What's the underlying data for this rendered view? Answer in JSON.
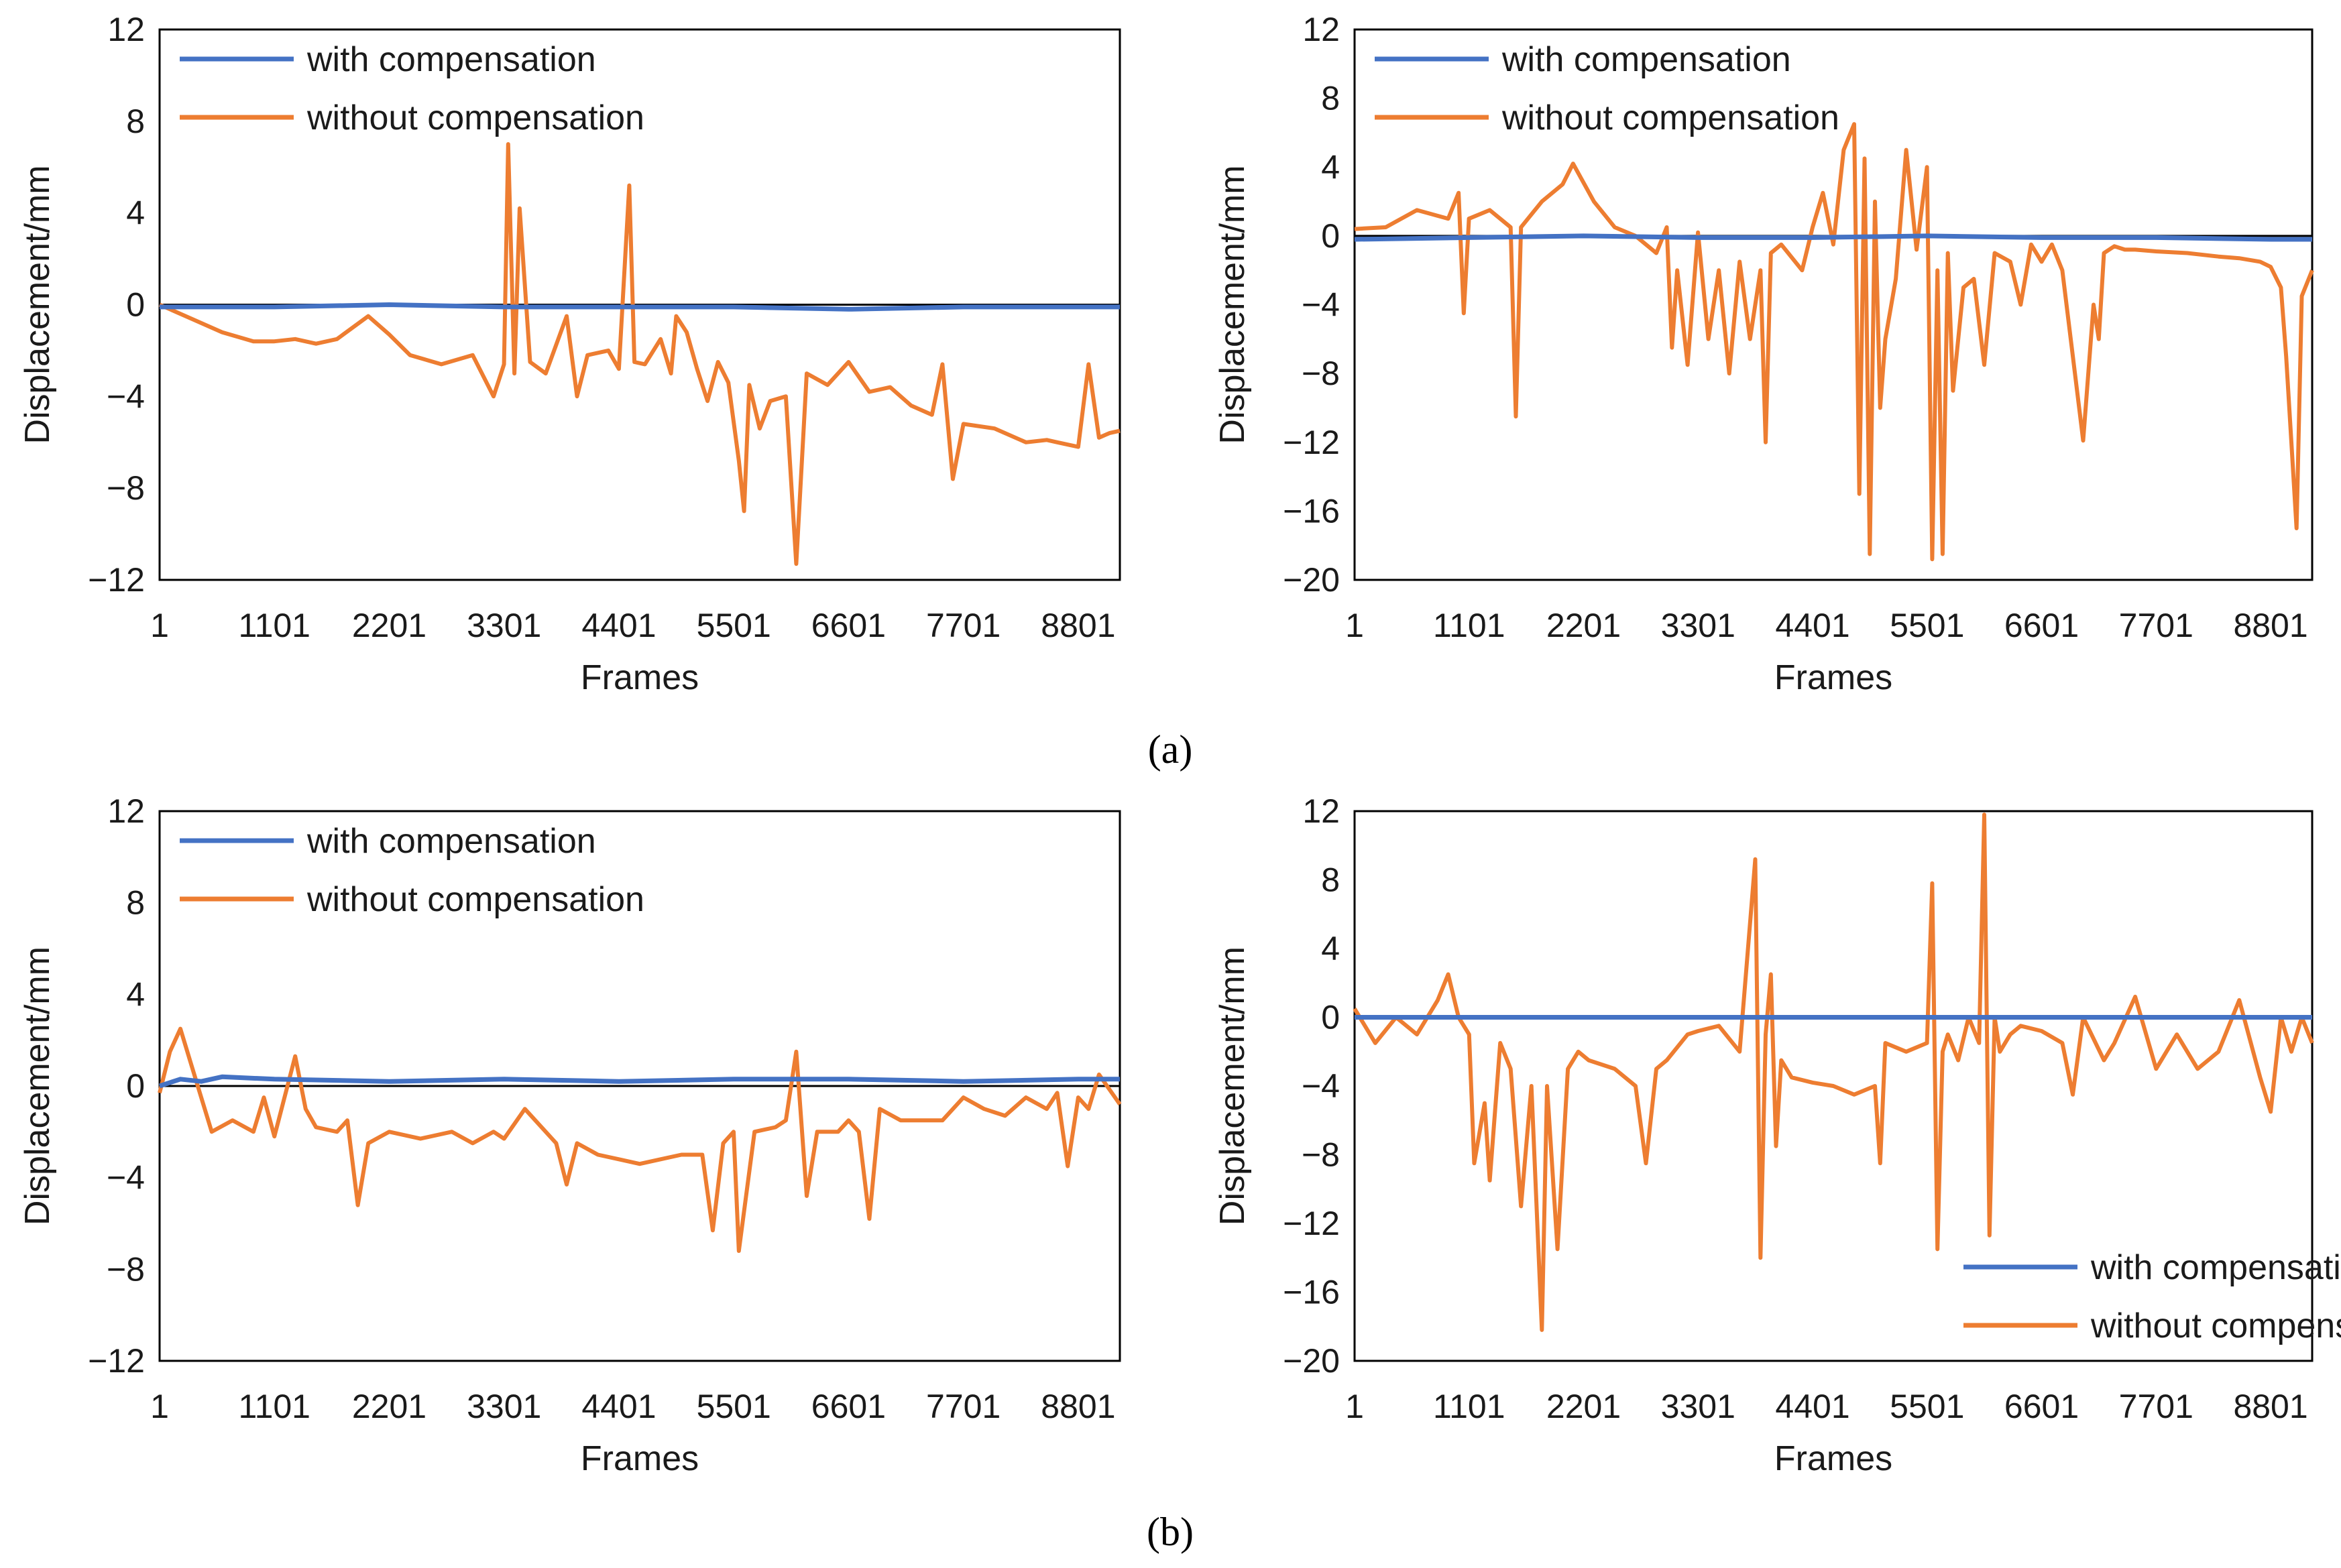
{
  "captions": {
    "a": "(a)",
    "b": "(b)"
  },
  "colors": {
    "with": "#4472C4",
    "without": "#ED7D31",
    "axis": "#000000"
  },
  "chart_data": [
    {
      "id": "a-left",
      "type": "line",
      "xlabel": "Frames",
      "ylabel": "Displacement/mm",
      "xlim": [
        1,
        9200
      ],
      "ylim": [
        -12,
        12
      ],
      "xticks": [
        1,
        1101,
        2201,
        3301,
        4401,
        5501,
        6601,
        7701,
        8801
      ],
      "yticks": [
        12,
        8,
        4,
        0,
        -4,
        -8,
        -12
      ],
      "yticklabels": [
        "12",
        "8",
        "4",
        "0",
        "−4",
        "−8",
        "−12"
      ],
      "legend_position": "top-left",
      "series": [
        {
          "name": "with compensation",
          "color": "#4472C4",
          "x": [
            1,
            1101,
            2201,
            3301,
            4401,
            5501,
            6601,
            7701,
            8801,
            9200
          ],
          "y": [
            -0.1,
            -0.1,
            0.0,
            -0.1,
            -0.1,
            -0.1,
            -0.2,
            -0.1,
            -0.1,
            -0.1
          ]
        },
        {
          "name": "without compensation",
          "color": "#ED7D31",
          "x": [
            1,
            300,
            600,
            900,
            1101,
            1300,
            1500,
            1700,
            2000,
            2201,
            2400,
            2700,
            3000,
            3200,
            3300,
            3340,
            3400,
            3450,
            3550,
            3700,
            3900,
            4000,
            4100,
            4300,
            4401,
            4500,
            4550,
            4650,
            4800,
            4900,
            4950,
            5050,
            5150,
            5250,
            5350,
            5450,
            5550,
            5600,
            5650,
            5750,
            5850,
            6000,
            6100,
            6200,
            6400,
            6601,
            6800,
            7000,
            7200,
            7300,
            7400,
            7500,
            7600,
            7701,
            8000,
            8300,
            8500,
            8600,
            8700,
            8801,
            8900,
            9000,
            9100,
            9200
          ],
          "y": [
            0,
            -0.6,
            -1.2,
            -1.6,
            -1.6,
            -1.5,
            -1.7,
            -1.5,
            -0.5,
            -1.3,
            -2.2,
            -2.6,
            -2.2,
            -4.0,
            -2.6,
            7.0,
            -3.0,
            4.2,
            -2.5,
            -3.0,
            -0.5,
            -4.0,
            -2.2,
            -2.0,
            -2.8,
            5.2,
            -2.5,
            -2.6,
            -1.5,
            -3.0,
            -0.5,
            -1.2,
            -2.8,
            -4.2,
            -2.5,
            -3.4,
            -6.8,
            -9.0,
            -3.5,
            -5.4,
            -4.2,
            -4.0,
            -11.3,
            -3.0,
            -3.5,
            -2.5,
            -3.8,
            -3.6,
            -4.4,
            -4.6,
            -4.8,
            -2.6,
            -7.6,
            -5.2,
            -5.4,
            -6.0,
            -5.9,
            -6.0,
            -6.1,
            -6.2,
            -2.6,
            -5.8,
            -5.6,
            -5.5
          ]
        }
      ]
    },
    {
      "id": "a-right",
      "type": "line",
      "xlabel": "Frames",
      "ylabel": "Displacement/mm",
      "xlim": [
        1,
        9200
      ],
      "ylim": [
        -20,
        12
      ],
      "xticks": [
        1,
        1101,
        2201,
        3301,
        4401,
        5501,
        6601,
        7701,
        8801
      ],
      "yticks": [
        12,
        8,
        4,
        0,
        -4,
        -8,
        -12,
        -16,
        -20
      ],
      "yticklabels": [
        "12",
        "8",
        "4",
        "0",
        "−4",
        "−8",
        "−12",
        "−16",
        "−20"
      ],
      "legend_position": "top-left",
      "series": [
        {
          "name": "with compensation",
          "color": "#4472C4",
          "x": [
            1,
            1101,
            2201,
            3301,
            4401,
            5501,
            6601,
            7701,
            8801,
            9200
          ],
          "y": [
            -0.2,
            -0.1,
            0.0,
            -0.1,
            -0.1,
            0.0,
            -0.1,
            -0.1,
            -0.2,
            -0.2
          ]
        },
        {
          "name": "without compensation",
          "color": "#ED7D31",
          "x": [
            1,
            300,
            600,
            900,
            1000,
            1050,
            1100,
            1300,
            1500,
            1550,
            1600,
            1800,
            2000,
            2100,
            2300,
            2500,
            2700,
            2900,
            3000,
            3050,
            3100,
            3200,
            3300,
            3400,
            3500,
            3600,
            3700,
            3800,
            3900,
            3950,
            4000,
            4100,
            4300,
            4401,
            4500,
            4600,
            4700,
            4800,
            4850,
            4900,
            4950,
            5000,
            5050,
            5100,
            5200,
            5300,
            5400,
            5500,
            5550,
            5600,
            5650,
            5700,
            5750,
            5850,
            5950,
            6050,
            6150,
            6300,
            6400,
            6500,
            6601,
            6700,
            6800,
            7000,
            7100,
            7150,
            7200,
            7300,
            7400,
            7500,
            7701,
            8000,
            8300,
            8500,
            8700,
            8801,
            8900,
            8950,
            9000,
            9050,
            9100,
            9200
          ],
          "y": [
            0.4,
            0.5,
            1.5,
            1.0,
            2.5,
            -4.5,
            1.0,
            1.5,
            0.5,
            -10.5,
            0.5,
            2.0,
            3.0,
            4.2,
            2.0,
            0.5,
            0.0,
            -1.0,
            0.5,
            -6.5,
            -2.0,
            -7.5,
            0.2,
            -6.0,
            -2.0,
            -8.0,
            -1.5,
            -6.0,
            -2.0,
            -12.0,
            -1.0,
            -0.5,
            -2.0,
            0.5,
            2.5,
            -0.5,
            5.0,
            6.5,
            -15.0,
            4.5,
            -18.5,
            2.0,
            -10.0,
            -6.0,
            -2.5,
            5.0,
            -0.8,
            4.0,
            -18.8,
            -2.0,
            -18.5,
            -1.0,
            -9.0,
            -3.0,
            -2.5,
            -7.5,
            -1.0,
            -1.5,
            -4.0,
            -0.5,
            -1.5,
            -0.5,
            -2.0,
            -11.9,
            -4.0,
            -6.0,
            -1.0,
            -0.6,
            -0.8,
            -0.8,
            -0.9,
            -1.0,
            -1.2,
            -1.3,
            -1.5,
            -1.8,
            -3.0,
            -7.0,
            -12.0,
            -17.0,
            -3.5,
            -2.0
          ]
        }
      ]
    },
    {
      "id": "b-left",
      "type": "line",
      "xlabel": "Frames",
      "ylabel": "Displacement/mm",
      "xlim": [
        1,
        9200
      ],
      "ylim": [
        -12,
        12
      ],
      "xticks": [
        1,
        1101,
        2201,
        3301,
        4401,
        5501,
        6601,
        7701,
        8801
      ],
      "yticks": [
        12,
        8,
        4,
        0,
        -4,
        -8,
        -12
      ],
      "yticklabels": [
        "12",
        "8",
        "4",
        "0",
        "−4",
        "−8",
        "−12"
      ],
      "legend_position": "top-left",
      "series": [
        {
          "name": "with compensation",
          "color": "#4472C4",
          "x": [
            1,
            200,
            400,
            600,
            1101,
            2201,
            3301,
            4401,
            5501,
            6601,
            7701,
            8801,
            9200
          ],
          "y": [
            0.0,
            0.3,
            0.2,
            0.4,
            0.3,
            0.2,
            0.3,
            0.2,
            0.3,
            0.3,
            0.2,
            0.3,
            0.3
          ]
        },
        {
          "name": "without compensation",
          "color": "#ED7D31",
          "x": [
            1,
            100,
            200,
            300,
            400,
            500,
            700,
            900,
            1000,
            1101,
            1300,
            1400,
            1500,
            1700,
            1800,
            1900,
            2000,
            2201,
            2500,
            2800,
            3000,
            3200,
            3301,
            3500,
            3800,
            3900,
            4000,
            4200,
            4401,
            4600,
            4800,
            5000,
            5200,
            5300,
            5400,
            5500,
            5550,
            5700,
            5900,
            6000,
            6100,
            6200,
            6300,
            6500,
            6601,
            6700,
            6800,
            6900,
            7100,
            7300,
            7500,
            7701,
            7900,
            8100,
            8300,
            8500,
            8600,
            8700,
            8801,
            8900,
            9000,
            9200
          ],
          "y": [
            -0.3,
            1.5,
            2.5,
            1.0,
            -0.5,
            -2.0,
            -1.5,
            -2.0,
            -0.5,
            -2.2,
            1.3,
            -1.0,
            -1.8,
            -2.0,
            -1.5,
            -5.2,
            -2.5,
            -2.0,
            -2.3,
            -2.0,
            -2.5,
            -2.0,
            -2.3,
            -1.0,
            -2.5,
            -4.3,
            -2.5,
            -3.0,
            -3.2,
            -3.4,
            -3.2,
            -3.0,
            -3.0,
            -6.3,
            -2.5,
            -2.0,
            -7.2,
            -2.0,
            -1.8,
            -1.5,
            1.5,
            -4.8,
            -2.0,
            -2.0,
            -1.5,
            -2.0,
            -5.8,
            -1.0,
            -1.5,
            -1.5,
            -1.5,
            -0.5,
            -1.0,
            -1.3,
            -0.5,
            -1.0,
            -0.3,
            -3.5,
            -0.5,
            -1.0,
            0.5,
            -0.8
          ]
        }
      ]
    },
    {
      "id": "b-right",
      "type": "line",
      "xlabel": "Frames",
      "ylabel": "Displacement/mm",
      "xlim": [
        1,
        9200
      ],
      "ylim": [
        -20,
        12
      ],
      "xticks": [
        1,
        1101,
        2201,
        3301,
        4401,
        5501,
        6601,
        7701,
        8801
      ],
      "yticks": [
        12,
        8,
        4,
        0,
        -4,
        -8,
        -12,
        -16,
        -20
      ],
      "yticklabels": [
        "12",
        "8",
        "4",
        "0",
        "−4",
        "−8",
        "−12",
        "−16",
        "−20"
      ],
      "legend_position": "bottom-right",
      "series": [
        {
          "name": "with compensation",
          "color": "#4472C4",
          "x": [
            1,
            1101,
            2201,
            3301,
            4401,
            5501,
            6601,
            7701,
            8801,
            9200
          ],
          "y": [
            0.0,
            0.0,
            0.0,
            0.0,
            0.0,
            0.0,
            0.0,
            0.0,
            0.0,
            0.0
          ]
        },
        {
          "name": "without compensation",
          "color": "#ED7D31",
          "x": [
            1,
            200,
            400,
            600,
            800,
            900,
            1000,
            1101,
            1150,
            1250,
            1300,
            1400,
            1500,
            1600,
            1700,
            1800,
            1850,
            1950,
            2050,
            2150,
            2250,
            2500,
            2700,
            2800,
            2900,
            3000,
            3200,
            3301,
            3500,
            3700,
            3850,
            3900,
            3950,
            4000,
            4050,
            4100,
            4200,
            4401,
            4600,
            4800,
            5000,
            5050,
            5100,
            5300,
            5500,
            5550,
            5600,
            5650,
            5700,
            5800,
            5900,
            6000,
            6050,
            6100,
            6150,
            6200,
            6300,
            6400,
            6601,
            6800,
            6900,
            7000,
            7200,
            7300,
            7500,
            7701,
            7900,
            8100,
            8300,
            8500,
            8700,
            8801,
            8900,
            9000,
            9100,
            9200
          ],
          "y": [
            0.5,
            -1.5,
            0.0,
            -1.0,
            1.0,
            2.5,
            0.0,
            -1.0,
            -8.5,
            -5.0,
            -9.5,
            -1.5,
            -3.0,
            -11.0,
            -4.0,
            -18.2,
            -4.0,
            -13.5,
            -3.0,
            -2.0,
            -2.5,
            -3.0,
            -4.0,
            -8.5,
            -3.0,
            -2.5,
            -1.0,
            -0.8,
            -0.5,
            -2.0,
            9.2,
            -14.0,
            -1.0,
            2.5,
            -7.5,
            -2.5,
            -3.5,
            -3.8,
            -4.0,
            -4.5,
            -4.0,
            -8.5,
            -1.5,
            -2.0,
            -1.5,
            7.8,
            -13.5,
            -2.0,
            -1.0,
            -2.5,
            0.0,
            -1.5,
            11.8,
            -12.7,
            0.0,
            -2.0,
            -1.0,
            -0.5,
            -0.8,
            -1.5,
            -4.5,
            0.0,
            -2.5,
            -1.5,
            1.2,
            -3.0,
            -1.0,
            -3.0,
            -2.0,
            1.0,
            -3.5,
            -5.5,
            0.0,
            -2.0,
            0.0,
            -1.5
          ]
        }
      ]
    }
  ]
}
